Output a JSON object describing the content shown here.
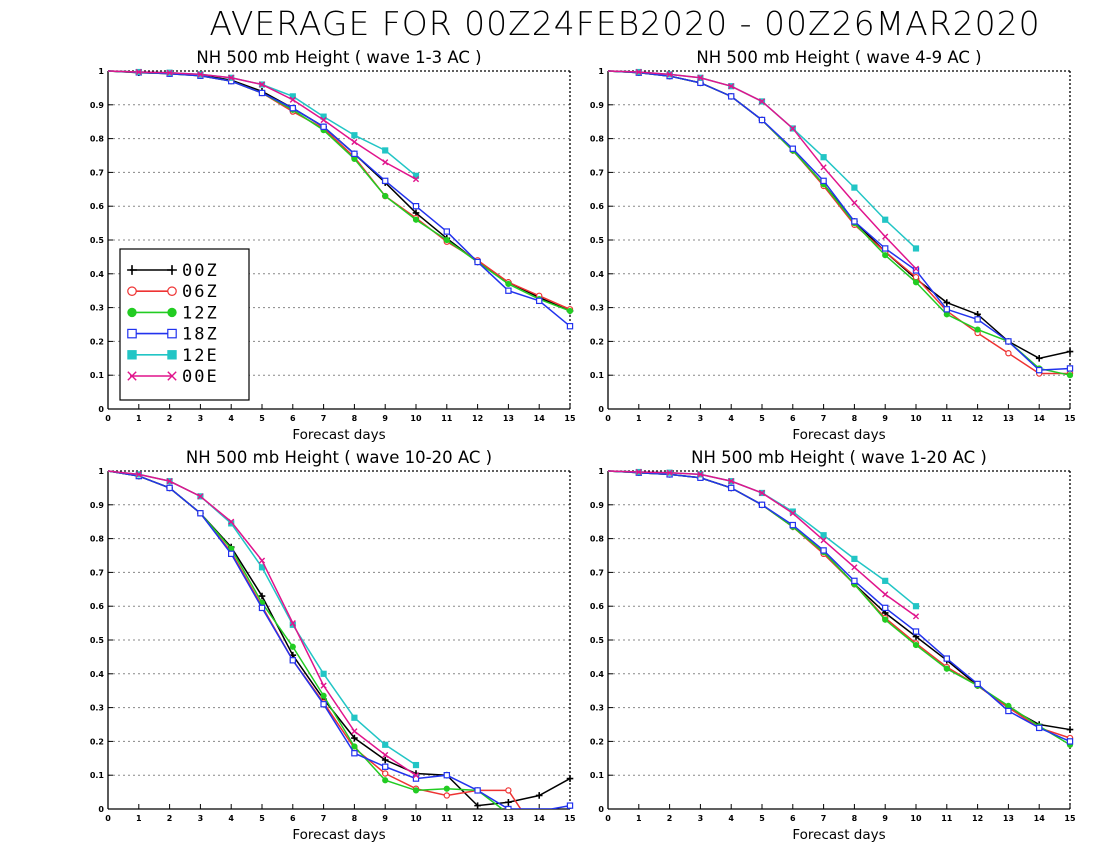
{
  "page_title": "AVERAGE FOR 00Z24FEB2020 - 00Z26MAR2020",
  "colors": {
    "00Z": "#000000",
    "06Z": "#ee3333",
    "12Z": "#22cc22",
    "18Z": "#2233ee",
    "12E": "#22c5c5",
    "00E": "#e0148c",
    "grid": "#888888"
  },
  "legend": {
    "placement": "left, inside first panel",
    "entries": [
      {
        "label": "00Z",
        "marker": "plus"
      },
      {
        "label": "06Z",
        "marker": "open-circle"
      },
      {
        "label": "12Z",
        "marker": "filled-circle"
      },
      {
        "label": "18Z",
        "marker": "open-square"
      },
      {
        "label": "12E",
        "marker": "filled-square"
      },
      {
        "label": "00E",
        "marker": "cross"
      }
    ]
  },
  "chart_data": [
    {
      "type": "line",
      "title": "NH 500 mb Height ( wave 1-3 AC )",
      "xlabel": "Forecast days",
      "ylabel": "",
      "xlim": [
        0,
        15
      ],
      "ylim": [
        0,
        1
      ],
      "x_ticks": [
        "0",
        "1",
        "2",
        "3",
        "4",
        "5",
        "6",
        "7",
        "8",
        "9",
        "10",
        "11",
        "12",
        "13",
        "14",
        "15"
      ],
      "y_ticks": [
        "0",
        "0.1",
        "0.2",
        "0.3",
        "0.4",
        "0.5",
        "0.6",
        "0.7",
        "0.8",
        "0.9",
        "1"
      ],
      "grid": "horizontal dotted",
      "series": [
        {
          "name": "00Z",
          "x": [
            0,
            1,
            2,
            3,
            4,
            5,
            6,
            7,
            8,
            9,
            10,
            11,
            12,
            13,
            14,
            15
          ],
          "values": [
            1,
            0.995,
            0.993,
            0.988,
            0.973,
            0.94,
            0.89,
            0.835,
            0.755,
            0.67,
            0.58,
            0.505,
            0.435,
            0.375,
            0.33,
            0.29
          ]
        },
        {
          "name": "06Z",
          "x": [
            0,
            1,
            2,
            3,
            4,
            5,
            6,
            7,
            8,
            9,
            10,
            11,
            12,
            13,
            14,
            15
          ],
          "values": [
            1,
            0.996,
            0.992,
            0.986,
            0.97,
            0.935,
            0.88,
            0.83,
            0.745,
            0.63,
            0.565,
            0.495,
            0.44,
            0.375,
            0.335,
            0.295
          ]
        },
        {
          "name": "12Z",
          "x": [
            0,
            1,
            2,
            3,
            4,
            5,
            6,
            7,
            8,
            9,
            10,
            11,
            12,
            13,
            14,
            15
          ],
          "values": [
            1,
            0.996,
            0.992,
            0.986,
            0.97,
            0.935,
            0.885,
            0.825,
            0.74,
            0.63,
            0.56,
            0.5,
            0.435,
            0.37,
            0.325,
            0.29
          ]
        },
        {
          "name": "18Z",
          "x": [
            0,
            1,
            2,
            3,
            4,
            5,
            6,
            7,
            8,
            9,
            10,
            11,
            12,
            13,
            14,
            15
          ],
          "values": [
            1,
            0.996,
            0.992,
            0.986,
            0.97,
            0.935,
            0.89,
            0.835,
            0.755,
            0.675,
            0.6,
            0.525,
            0.435,
            0.35,
            0.32,
            0.245
          ]
        },
        {
          "name": "12E",
          "x": [
            0,
            1,
            2,
            3,
            4,
            5,
            6,
            7,
            8,
            9,
            10
          ],
          "values": [
            1,
            0.997,
            0.995,
            0.99,
            0.98,
            0.96,
            0.925,
            0.865,
            0.81,
            0.765,
            0.69
          ]
        },
        {
          "name": "00E",
          "x": [
            0,
            1,
            2,
            3,
            4,
            5,
            6,
            7,
            8,
            9,
            10
          ],
          "values": [
            1,
            0.997,
            0.995,
            0.99,
            0.98,
            0.96,
            0.915,
            0.855,
            0.79,
            0.73,
            0.68
          ]
        }
      ]
    },
    {
      "type": "line",
      "title": "NH 500 mb Height ( wave 4-9 AC )",
      "xlabel": "Forecast days",
      "ylabel": "",
      "xlim": [
        0,
        15
      ],
      "ylim": [
        0,
        1
      ],
      "x_ticks": [
        "0",
        "1",
        "2",
        "3",
        "4",
        "5",
        "6",
        "7",
        "8",
        "9",
        "10",
        "11",
        "12",
        "13",
        "14",
        "15"
      ],
      "y_ticks": [
        "0",
        "0.1",
        "0.2",
        "0.3",
        "0.4",
        "0.5",
        "0.6",
        "0.7",
        "0.8",
        "0.9",
        "1"
      ],
      "grid": "horizontal dotted",
      "series": [
        {
          "name": "00Z",
          "x": [
            0,
            1,
            2,
            3,
            4,
            5,
            6,
            7,
            8,
            9,
            10,
            11,
            12,
            13,
            14,
            15
          ],
          "values": [
            1,
            0.995,
            0.985,
            0.965,
            0.925,
            0.855,
            0.765,
            0.665,
            0.555,
            0.465,
            0.385,
            0.315,
            0.28,
            0.2,
            0.15,
            0.17
          ]
        },
        {
          "name": "06Z",
          "x": [
            0,
            1,
            2,
            3,
            4,
            5,
            6,
            7,
            8,
            9,
            10,
            11,
            12,
            13,
            14,
            15
          ],
          "values": [
            1,
            0.995,
            0.985,
            0.965,
            0.925,
            0.855,
            0.765,
            0.66,
            0.545,
            0.465,
            0.39,
            0.29,
            0.225,
            0.165,
            0.105,
            0.105
          ]
        },
        {
          "name": "12Z",
          "x": [
            0,
            1,
            2,
            3,
            4,
            5,
            6,
            7,
            8,
            9,
            10,
            11,
            12,
            13,
            14,
            15
          ],
          "values": [
            1,
            0.995,
            0.985,
            0.965,
            0.925,
            0.855,
            0.765,
            0.665,
            0.55,
            0.455,
            0.375,
            0.28,
            0.235,
            0.2,
            0.12,
            0.1
          ]
        },
        {
          "name": "18Z",
          "x": [
            0,
            1,
            2,
            3,
            4,
            5,
            6,
            7,
            8,
            9,
            10,
            11,
            12,
            13,
            14,
            15
          ],
          "values": [
            1,
            0.995,
            0.985,
            0.965,
            0.925,
            0.855,
            0.77,
            0.675,
            0.555,
            0.475,
            0.41,
            0.295,
            0.265,
            0.2,
            0.115,
            0.12
          ]
        },
        {
          "name": "12E",
          "x": [
            0,
            1,
            2,
            3,
            4,
            5,
            6,
            7,
            8,
            9,
            10
          ],
          "values": [
            1,
            0.997,
            0.99,
            0.98,
            0.955,
            0.91,
            0.83,
            0.745,
            0.655,
            0.56,
            0.475
          ]
        },
        {
          "name": "00E",
          "x": [
            0,
            1,
            2,
            3,
            4,
            5,
            6,
            7,
            8,
            9,
            10
          ],
          "values": [
            1,
            0.997,
            0.99,
            0.98,
            0.955,
            0.91,
            0.83,
            0.715,
            0.61,
            0.51,
            0.415
          ]
        }
      ]
    },
    {
      "type": "line",
      "title": "NH 500 mb Height ( wave 10-20 AC )",
      "xlabel": "Forecast days",
      "ylabel": "",
      "xlim": [
        0,
        15
      ],
      "ylim": [
        0,
        1
      ],
      "x_ticks": [
        "0",
        "1",
        "2",
        "3",
        "4",
        "5",
        "6",
        "7",
        "8",
        "9",
        "10",
        "11",
        "12",
        "13",
        "14",
        "15"
      ],
      "y_ticks": [
        "0",
        "0.1",
        "0.2",
        "0.3",
        "0.4",
        "0.5",
        "0.6",
        "0.7",
        "0.8",
        "0.9",
        "1"
      ],
      "grid": "horizontal dotted",
      "series": [
        {
          "name": "00Z",
          "x": [
            0,
            1,
            2,
            3,
            4,
            5,
            6,
            7,
            8,
            9,
            10,
            11,
            12,
            13,
            14,
            15
          ],
          "values": [
            1,
            0.985,
            0.95,
            0.875,
            0.775,
            0.63,
            0.455,
            0.325,
            0.21,
            0.145,
            0.105,
            0.1,
            0.01,
            0.02,
            0.04,
            0.09
          ]
        },
        {
          "name": "06Z",
          "x": [
            0,
            1,
            2,
            3,
            4,
            5,
            6,
            7,
            8,
            9,
            10,
            11,
            12,
            13,
            13.4
          ],
          "values": [
            1,
            0.985,
            0.95,
            0.875,
            0.76,
            0.6,
            0.44,
            0.315,
            0.18,
            0.105,
            0.06,
            0.04,
            0.055,
            0.055,
            0
          ]
        },
        {
          "name": "12Z",
          "x": [
            0,
            1,
            2,
            3,
            4,
            5,
            6,
            7,
            8,
            9,
            10,
            11,
            12,
            12.8
          ],
          "values": [
            1,
            0.985,
            0.95,
            0.875,
            0.77,
            0.61,
            0.48,
            0.335,
            0.185,
            0.085,
            0.055,
            0.06,
            0.055,
            0
          ]
        },
        {
          "name": "18Z",
          "x": [
            0,
            1,
            2,
            3,
            4,
            5,
            6,
            7,
            8,
            9,
            10,
            11,
            12,
            13,
            14.4,
            15
          ],
          "values": [
            1,
            0.985,
            0.95,
            0.875,
            0.755,
            0.595,
            0.44,
            0.31,
            0.165,
            0.125,
            0.09,
            0.1,
            0.055,
            0,
            0,
            0.01
          ]
        },
        {
          "name": "12E",
          "x": [
            0,
            1,
            2,
            3,
            4,
            5,
            6,
            7,
            8,
            9,
            10
          ],
          "values": [
            1,
            0.99,
            0.97,
            0.925,
            0.845,
            0.715,
            0.545,
            0.4,
            0.27,
            0.19,
            0.13
          ]
        },
        {
          "name": "00E",
          "x": [
            0,
            1,
            2,
            3,
            4,
            5,
            6,
            7,
            8,
            9,
            10
          ],
          "values": [
            1,
            0.99,
            0.97,
            0.925,
            0.85,
            0.735,
            0.55,
            0.365,
            0.23,
            0.16,
            0.1
          ]
        }
      ]
    },
    {
      "type": "line",
      "title": "NH 500 mb Height ( wave 1-20 AC )",
      "xlabel": "Forecast days",
      "ylabel": "",
      "xlim": [
        0,
        15
      ],
      "ylim": [
        0,
        1
      ],
      "x_ticks": [
        "0",
        "1",
        "2",
        "3",
        "4",
        "5",
        "6",
        "7",
        "8",
        "9",
        "10",
        "11",
        "12",
        "13",
        "14",
        "15"
      ],
      "y_ticks": [
        "0",
        "0.1",
        "0.2",
        "0.3",
        "0.4",
        "0.5",
        "0.6",
        "0.7",
        "0.8",
        "0.9",
        "1"
      ],
      "grid": "horizontal dotted",
      "series": [
        {
          "name": "00Z",
          "x": [
            0,
            1,
            2,
            3,
            4,
            5,
            6,
            7,
            8,
            9,
            10,
            11,
            12,
            13,
            14,
            15
          ],
          "values": [
            1,
            0.995,
            0.99,
            0.98,
            0.95,
            0.9,
            0.835,
            0.76,
            0.665,
            0.58,
            0.51,
            0.44,
            0.365,
            0.3,
            0.25,
            0.235
          ]
        },
        {
          "name": "06Z",
          "x": [
            0,
            1,
            2,
            3,
            4,
            5,
            6,
            7,
            8,
            9,
            10,
            11,
            12,
            13,
            14,
            15
          ],
          "values": [
            1,
            0.995,
            0.99,
            0.98,
            0.95,
            0.9,
            0.835,
            0.755,
            0.665,
            0.565,
            0.49,
            0.42,
            0.365,
            0.3,
            0.24,
            0.21
          ]
        },
        {
          "name": "12Z",
          "x": [
            0,
            1,
            2,
            3,
            4,
            5,
            6,
            7,
            8,
            9,
            10,
            11,
            12,
            13,
            14,
            15
          ],
          "values": [
            1,
            0.995,
            0.99,
            0.98,
            0.95,
            0.9,
            0.835,
            0.76,
            0.665,
            0.56,
            0.485,
            0.415,
            0.365,
            0.305,
            0.245,
            0.19
          ]
        },
        {
          "name": "18Z",
          "x": [
            0,
            1,
            2,
            3,
            4,
            5,
            6,
            7,
            8,
            9,
            10,
            11,
            12,
            13,
            14,
            15
          ],
          "values": [
            1,
            0.995,
            0.99,
            0.98,
            0.95,
            0.9,
            0.84,
            0.765,
            0.675,
            0.595,
            0.525,
            0.445,
            0.37,
            0.29,
            0.24,
            0.2
          ]
        },
        {
          "name": "12E",
          "x": [
            0,
            1,
            2,
            3,
            4,
            5,
            6,
            7,
            8,
            9,
            10
          ],
          "values": [
            1,
            0.997,
            0.995,
            0.99,
            0.97,
            0.935,
            0.88,
            0.81,
            0.74,
            0.675,
            0.6
          ]
        },
        {
          "name": "00E",
          "x": [
            0,
            1,
            2,
            3,
            4,
            5,
            6,
            7,
            8,
            9,
            10
          ],
          "values": [
            1,
            0.997,
            0.995,
            0.99,
            0.97,
            0.935,
            0.875,
            0.795,
            0.715,
            0.635,
            0.57
          ]
        }
      ]
    }
  ]
}
